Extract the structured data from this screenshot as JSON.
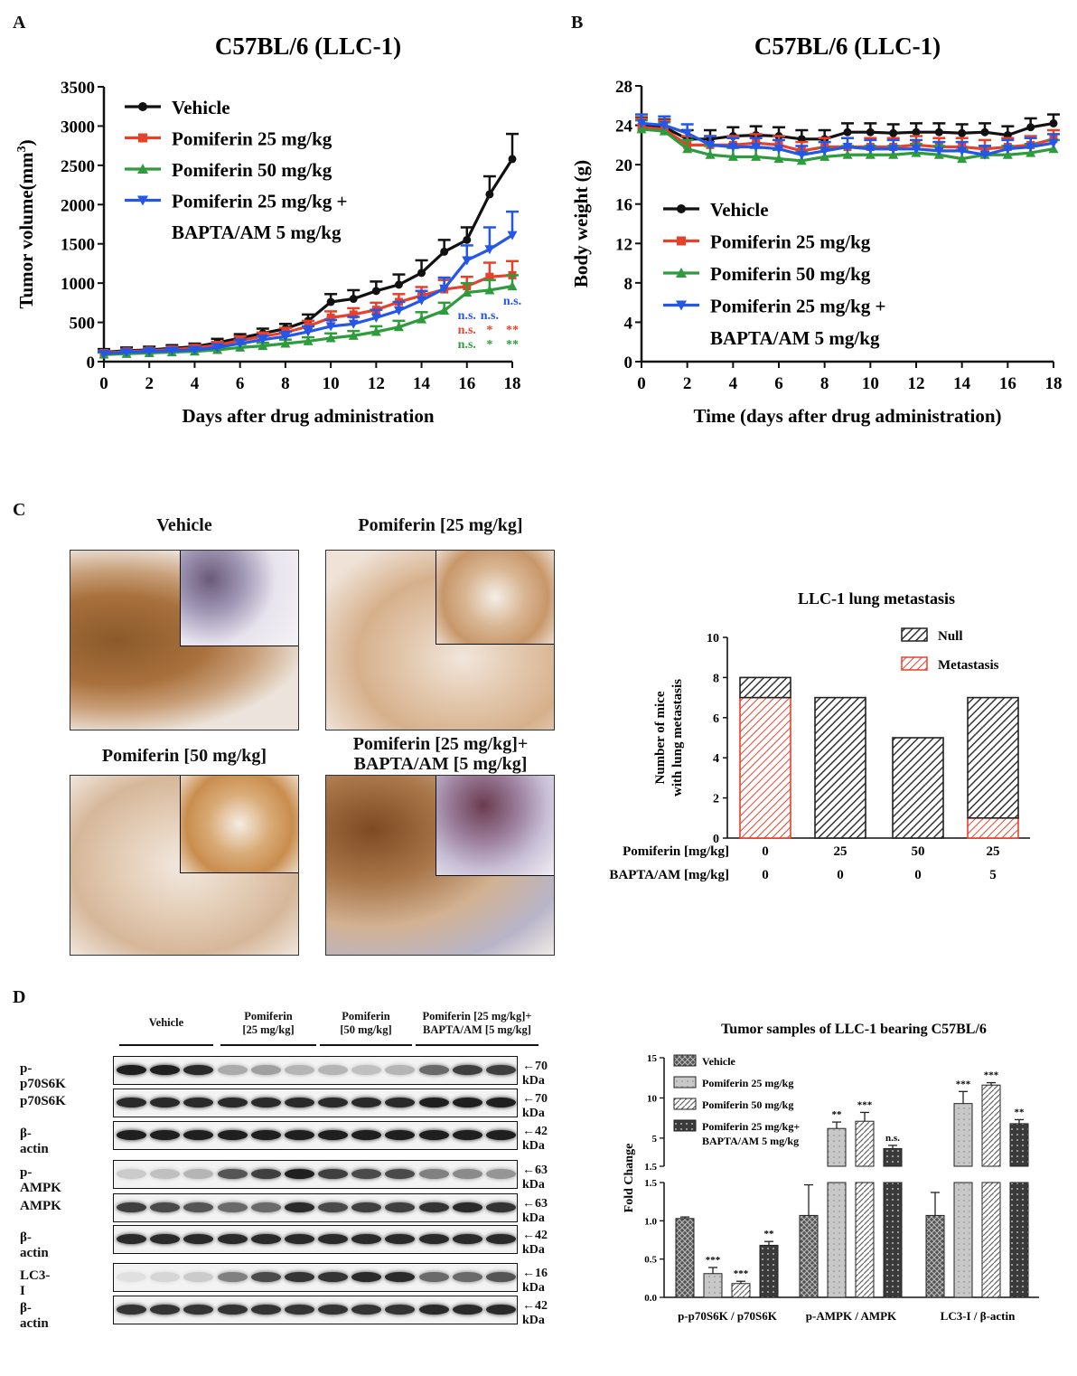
{
  "panels": {
    "A": "A",
    "B": "B",
    "C": "C",
    "D": "D"
  },
  "chart_data": [
    {
      "id": "A",
      "type": "line",
      "title": "C57BL/6 (LLC-1)",
      "xlabel": "Days after drug administration",
      "ylabel": "Tumor volume(mm",
      "ylabel_sup": "3",
      "ylabel_end": ")",
      "xlim": [
        0,
        18
      ],
      "ylim": [
        0,
        3500
      ],
      "xticks": [
        0,
        2,
        4,
        6,
        8,
        10,
        12,
        14,
        16,
        18
      ],
      "yticks": [
        0,
        500,
        1000,
        1500,
        2000,
        2500,
        3000,
        3500
      ],
      "x": [
        0,
        1,
        2,
        3,
        4,
        5,
        6,
        7,
        8,
        9,
        10,
        11,
        12,
        13,
        14,
        15,
        16,
        17,
        18
      ],
      "series": [
        {
          "name": "Vehicle",
          "color": "#111111",
          "marker": "circle",
          "values": [
            120,
            140,
            150,
            170,
            190,
            240,
            300,
            360,
            420,
            520,
            760,
            800,
            900,
            980,
            1130,
            1400,
            1550,
            2130,
            2580
          ],
          "errors": [
            40,
            40,
            40,
            40,
            40,
            50,
            50,
            60,
            60,
            80,
            100,
            110,
            120,
            130,
            160,
            150,
            160,
            230,
            320
          ]
        },
        {
          "name": "Pomiferin 25 mg/kg",
          "color": "#e8412b",
          "marker": "square",
          "values": [
            110,
            130,
            140,
            155,
            175,
            210,
            270,
            320,
            370,
            450,
            560,
            600,
            660,
            760,
            840,
            920,
            960,
            1080,
            1100
          ],
          "errors": [
            30,
            30,
            30,
            35,
            35,
            40,
            50,
            50,
            60,
            70,
            80,
            80,
            90,
            100,
            110,
            120,
            120,
            180,
            180
          ]
        },
        {
          "name": "Pomiferin 50 mg/kg",
          "color": "#2e9b3c",
          "marker": "triangle",
          "values": [
            90,
            100,
            110,
            120,
            130,
            150,
            180,
            200,
            230,
            260,
            300,
            330,
            380,
            440,
            540,
            650,
            880,
            910,
            960
          ],
          "errors": [
            25,
            25,
            25,
            25,
            30,
            30,
            40,
            40,
            50,
            50,
            60,
            60,
            70,
            80,
            90,
            100,
            120,
            130,
            140
          ]
        },
        {
          "name": "Pomiferin 25 mg/kg +",
          "name_line2": "BAPTA/AM 5 mg/kg",
          "color": "#2456e8",
          "marker": "triangle-down",
          "values": [
            100,
            120,
            130,
            140,
            150,
            180,
            230,
            280,
            320,
            380,
            450,
            480,
            560,
            650,
            780,
            930,
            1290,
            1430,
            1610
          ],
          "errors": [
            30,
            30,
            30,
            30,
            35,
            40,
            50,
            50,
            60,
            70,
            80,
            90,
            100,
            110,
            120,
            140,
            190,
            280,
            300
          ]
        }
      ],
      "annotations": [
        {
          "text": "n.s.",
          "x": 16,
          "row": 0,
          "color": "#2456e8"
        },
        {
          "text": "n.s.",
          "x": 17,
          "row": 0,
          "color": "#2456e8"
        },
        {
          "text": "n.s.",
          "x": 18,
          "row": -1,
          "color": "#2456e8"
        },
        {
          "text": "n.s.",
          "x": 16,
          "row": 1,
          "color": "#e8412b"
        },
        {
          "text": "*",
          "x": 17,
          "row": 1,
          "color": "#e8412b"
        },
        {
          "text": "**",
          "x": 18,
          "row": 1,
          "color": "#e8412b"
        },
        {
          "text": "n.s.",
          "x": 16,
          "row": 2,
          "color": "#2e9b3c"
        },
        {
          "text": "*",
          "x": 17,
          "row": 2,
          "color": "#2e9b3c"
        },
        {
          "text": "**",
          "x": 18,
          "row": 2,
          "color": "#2e9b3c"
        }
      ],
      "legend": "top-left"
    },
    {
      "id": "B",
      "type": "line",
      "title": "C57BL/6 (LLC-1)",
      "xlabel": "Time (days after drug administration)",
      "ylabel": "Body weight (g)",
      "xlim": [
        0,
        18
      ],
      "ylim": [
        0,
        28
      ],
      "xticks": [
        0,
        2,
        4,
        6,
        8,
        10,
        12,
        14,
        16,
        18
      ],
      "yticks": [
        0,
        4,
        8,
        12,
        16,
        20,
        24,
        28
      ],
      "x": [
        0,
        1,
        2,
        3,
        4,
        5,
        6,
        7,
        8,
        9,
        10,
        11,
        12,
        13,
        14,
        15,
        16,
        17,
        18
      ],
      "series": [
        {
          "name": "Vehicle",
          "color": "#111111",
          "marker": "circle",
          "values": [
            24.0,
            23.8,
            22.6,
            22.6,
            22.9,
            23.0,
            22.9,
            22.6,
            22.6,
            23.3,
            23.3,
            23.2,
            23.3,
            23.3,
            23.2,
            23.3,
            23.0,
            23.8,
            24.2
          ],
          "errors": [
            0.8,
            0.8,
            0.9,
            0.9,
            0.9,
            0.9,
            0.9,
            0.9,
            0.9,
            0.9,
            0.9,
            0.9,
            0.9,
            0.9,
            0.9,
            0.9,
            0.9,
            0.9,
            0.9
          ]
        },
        {
          "name": "Pomiferin 25 mg/kg",
          "color": "#e8412b",
          "marker": "square",
          "values": [
            23.8,
            23.6,
            22.0,
            22.0,
            22.0,
            22.2,
            22.0,
            21.4,
            21.8,
            21.8,
            21.8,
            21.8,
            22.0,
            21.8,
            21.8,
            21.6,
            21.8,
            22.0,
            22.6
          ],
          "errors": [
            0.9,
            0.9,
            0.9,
            0.9,
            0.9,
            0.9,
            0.9,
            0.9,
            0.9,
            0.9,
            0.9,
            0.9,
            0.9,
            0.9,
            0.9,
            0.9,
            0.9,
            0.9,
            0.9
          ]
        },
        {
          "name": "Pomiferin 50 mg/kg",
          "color": "#2e9b3c",
          "marker": "triangle",
          "values": [
            23.6,
            23.4,
            21.6,
            21.0,
            20.8,
            20.8,
            20.6,
            20.4,
            20.8,
            21.0,
            21.0,
            21.0,
            21.2,
            21.0,
            20.6,
            21.0,
            21.0,
            21.2,
            21.6
          ],
          "errors": [
            0.9,
            0.9,
            0.9,
            0.9,
            0.9,
            0.9,
            0.9,
            0.9,
            0.9,
            0.9,
            0.9,
            0.9,
            0.9,
            0.9,
            0.9,
            0.9,
            0.9,
            0.9,
            0.9
          ]
        },
        {
          "name": "Pomiferin 25 mg/kg +",
          "name_line2": "BAPTA/AM 5 mg/kg",
          "color": "#2456e8",
          "marker": "triangle-down",
          "values": [
            24.2,
            24.0,
            23.2,
            22.0,
            21.8,
            21.8,
            21.6,
            21.0,
            21.4,
            21.8,
            21.6,
            21.6,
            21.6,
            21.4,
            21.4,
            21.0,
            21.6,
            21.8,
            22.2
          ],
          "errors": [
            0.9,
            0.9,
            0.9,
            0.9,
            0.9,
            0.9,
            0.9,
            0.9,
            0.9,
            0.9,
            0.9,
            0.9,
            0.9,
            0.9,
            0.9,
            0.9,
            0.9,
            0.9,
            0.9
          ]
        }
      ],
      "legend": "bottom-left"
    },
    {
      "id": "C-bar",
      "type": "bar",
      "title": "LLC-1 lung metastasis",
      "ylabel": "Number of mice",
      "ylabel2": "with lung metastasis",
      "ylim": [
        0,
        10
      ],
      "yticks": [
        0,
        2,
        4,
        6,
        8,
        10
      ],
      "row_labels": [
        "Pomiferin [mg/kg]",
        "BAPTA/AM [mg/kg]"
      ],
      "categories_row1": [
        "0",
        "25",
        "50",
        "25"
      ],
      "categories_row2": [
        "0",
        "0",
        "0",
        "5"
      ],
      "series": [
        {
          "name": "Metastasis",
          "color": "#e8412b",
          "values": [
            7,
            0,
            0,
            1
          ]
        },
        {
          "name": "Null",
          "color": "#333333",
          "values": [
            1,
            7,
            5,
            6
          ]
        }
      ],
      "stacked": true,
      "legend": "top-right"
    },
    {
      "id": "D-bar",
      "type": "bar",
      "title": "Tumor samples of LLC-1 bearing C57BL/6",
      "ylabel": "Fold Change",
      "broken_axis": true,
      "lower_yticks": [
        "0.0",
        "0.5",
        "1.0",
        "1.5"
      ],
      "upper_yticks": [
        "1.5",
        "5",
        "10",
        "15"
      ],
      "categories": [
        "p-p70S6K / p70S6K",
        "p-AMPK / AMPK",
        "LC3-I / β-actin"
      ],
      "series": [
        {
          "name": "Vehicle",
          "values": [
            1.03,
            1.07,
            1.07
          ],
          "errors": [
            0.02,
            0.4,
            0.3
          ],
          "sig": [
            "",
            "",
            ""
          ]
        },
        {
          "name": "Pomiferin 25 mg/kg",
          "values": [
            0.31,
            6.2,
            9.3
          ],
          "errors": [
            0.08,
            0.8,
            1.5
          ],
          "sig": [
            "***",
            "**",
            "***"
          ]
        },
        {
          "name": "Pomiferin 50 mg/kg",
          "values": [
            0.18,
            7.1,
            11.6
          ],
          "errors": [
            0.03,
            1.1,
            0.3
          ],
          "sig": [
            "***",
            "***",
            "***"
          ]
        },
        {
          "name": "Pomiferin 25 mg/kg+",
          "name_line2": "BAPTA/AM 5 mg/kg",
          "values": [
            0.68,
            3.7,
            6.8
          ],
          "errors": [
            0.05,
            0.4,
            0.5
          ],
          "sig": [
            "**",
            "n.s.",
            "**"
          ]
        }
      ],
      "legend": "top-left"
    }
  ],
  "ihc": {
    "labels": [
      "Vehicle",
      "Pomiferin [25 mg/kg]",
      "Pomiferin [50 mg/kg]",
      "Pomiferin [25 mg/kg]+",
      "BAPTA/AM [5 mg/kg]"
    ]
  },
  "western": {
    "groups": [
      {
        "line1": "Vehicle",
        "line2": ""
      },
      {
        "line1": "Pomiferin",
        "line2": "[25 mg/kg]"
      },
      {
        "line1": "Pomiferin",
        "line2": "[50 mg/kg]"
      },
      {
        "line1": "Pomiferin [25 mg/kg]+",
        "line2": "BAPTA/AM [5 mg/kg]"
      }
    ],
    "blots": [
      {
        "label": "p-p70S6K",
        "kda": "70 kDa",
        "intensity": [
          0.95,
          0.95,
          0.9,
          0.3,
          0.35,
          0.25,
          0.25,
          0.2,
          0.25,
          0.6,
          0.8,
          0.8
        ]
      },
      {
        "label": "p70S6K",
        "kda": "70 kDa",
        "intensity": [
          0.9,
          0.9,
          0.9,
          0.9,
          0.9,
          0.9,
          0.9,
          0.9,
          0.9,
          0.95,
          0.95,
          0.95
        ]
      },
      {
        "label": "β-actin",
        "kda": "42 kDa",
        "intensity": [
          0.95,
          0.95,
          0.95,
          0.95,
          0.95,
          0.95,
          0.95,
          0.95,
          0.95,
          0.95,
          0.95,
          0.95
        ]
      },
      {
        "label": "p-AMPK",
        "kda": "63 kDa",
        "intensity": [
          0.15,
          0.2,
          0.25,
          0.7,
          0.8,
          0.95,
          0.8,
          0.75,
          0.75,
          0.5,
          0.45,
          0.4
        ]
      },
      {
        "label": "AMPK",
        "kda": "63 kDa",
        "intensity": [
          0.8,
          0.75,
          0.7,
          0.6,
          0.6,
          0.9,
          0.75,
          0.8,
          0.8,
          0.85,
          0.9,
          0.85
        ]
      },
      {
        "label": "β-actin",
        "kda": "42 kDa",
        "intensity": [
          0.9,
          0.9,
          0.9,
          0.9,
          0.9,
          0.9,
          0.9,
          0.9,
          0.9,
          0.9,
          0.9,
          0.9
        ]
      },
      {
        "label": "LC3-I",
        "kda": "16 kDa",
        "intensity": [
          0.05,
          0.1,
          0.15,
          0.5,
          0.75,
          0.85,
          0.85,
          0.9,
          0.9,
          0.6,
          0.6,
          0.7
        ]
      },
      {
        "label": "β-actin",
        "kda": "42 kDa",
        "intensity": [
          0.85,
          0.85,
          0.85,
          0.85,
          0.85,
          0.85,
          0.85,
          0.85,
          0.85,
          0.9,
          0.9,
          0.9
        ]
      }
    ]
  }
}
